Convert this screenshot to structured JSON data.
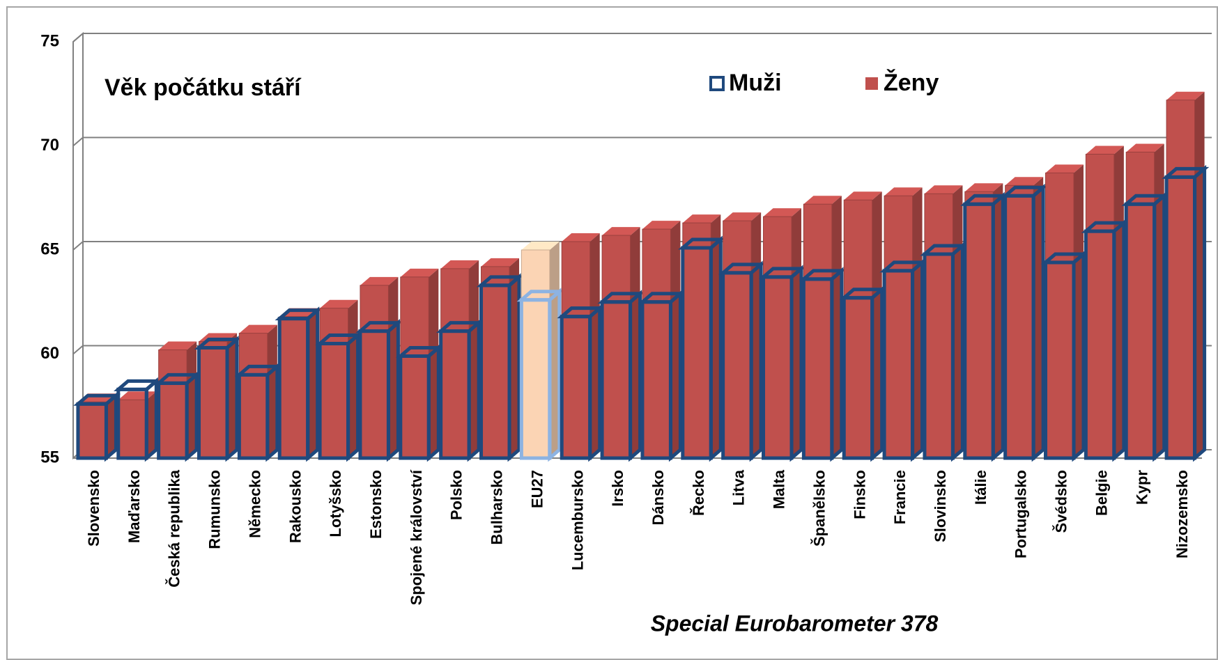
{
  "chart_data": {
    "type": "bar3d",
    "title": "Věk počátku stáří",
    "annotation": "Special Eurobarometer 378",
    "categories": [
      "Slovensko",
      "Maďarsko",
      "Česká republika",
      "Rumunsko",
      "Německo",
      "Rakousko",
      "Lotyšsko",
      "Estonsko",
      "Spojené království",
      "Polsko",
      "Bulharsko",
      "EU27",
      "Lucembursko",
      "Irsko",
      "Dánsko",
      "Řecko",
      "Litva",
      "Malta",
      "Španělsko",
      "Finsko",
      "Francie",
      "Slovinsko",
      "Itálie",
      "Portugalsko",
      "Švédsko",
      "Belgie",
      "Kypr",
      "Nizozemsko"
    ],
    "highlight": "EU27",
    "series": [
      {
        "name": "Ženy",
        "style": "filled",
        "color": "#c0504d",
        "highlight_color": "#fbd4b4",
        "values": [
          57.7,
          57.8,
          60.2,
          60.6,
          61.0,
          61.8,
          62.2,
          63.3,
          63.7,
          64.1,
          64.2,
          65.0,
          65.4,
          65.7,
          66.0,
          66.3,
          66.4,
          66.6,
          67.2,
          67.4,
          67.6,
          67.7,
          67.8,
          68.1,
          68.7,
          69.6,
          69.7,
          72.2
        ]
      },
      {
        "name": "Muži",
        "style": "outline",
        "color": "#1f497d",
        "highlight_color": "#8db3e2",
        "values": [
          57.6,
          58.3,
          58.6,
          60.3,
          59.0,
          61.7,
          60.5,
          61.1,
          59.9,
          61.1,
          63.3,
          62.6,
          61.8,
          62.5,
          62.5,
          65.1,
          63.9,
          63.7,
          63.6,
          62.7,
          64.0,
          64.8,
          67.2,
          67.6,
          64.4,
          65.9,
          67.2,
          68.5
        ]
      }
    ],
    "ylim": [
      55,
      75
    ],
    "yticks": [
      55,
      60,
      65,
      70,
      75
    ],
    "grid": true
  }
}
